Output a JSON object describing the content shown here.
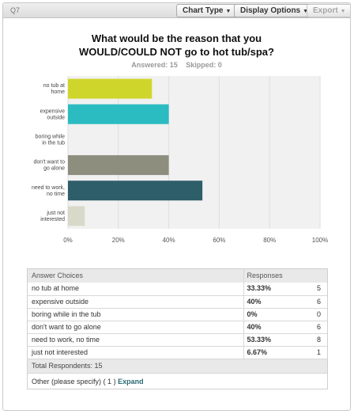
{
  "toolbar": {
    "question_number": "Q7",
    "chart_type_label": "Chart Type",
    "display_options_label": "Display Options",
    "export_label": "Export"
  },
  "question": {
    "title_line1": "What would be the reason that you",
    "title_line2": "WOULD/COULD NOT go to hot tub/spa?",
    "answered": "Answered: 15",
    "skipped": "Skipped: 0"
  },
  "chart_data": {
    "type": "bar",
    "orientation": "horizontal",
    "categories": [
      "no tub at home",
      "expensive outside",
      "boring while in the tub",
      "don't want to go alone",
      "need to work, no time",
      "just not interested"
    ],
    "category_labels": [
      [
        "no tub at",
        "home"
      ],
      [
        "expensive",
        "outside"
      ],
      [
        "boring while",
        "in the tub"
      ],
      [
        "don't want to",
        "go alone"
      ],
      [
        "need to work,",
        "no time"
      ],
      [
        "just not",
        "interested"
      ]
    ],
    "values": [
      33.33,
      40,
      0,
      40,
      53.33,
      6.67
    ],
    "colors": [
      "#cfd62b",
      "#2bbcc2",
      "#e2e2e2",
      "#8e8e7f",
      "#2e5e6a",
      "#d9d9c9"
    ],
    "xlim": [
      0,
      100
    ],
    "x_ticks": [
      "0%",
      "20%",
      "40%",
      "60%",
      "80%",
      "100%"
    ],
    "grid": true,
    "plot_background": "#f1f1f1"
  },
  "table": {
    "header_choice": "Answer Choices",
    "header_responses": "Responses",
    "rows": [
      {
        "choice": "no tub at home",
        "percent": "33.33%",
        "count": "5"
      },
      {
        "choice": "expensive outside",
        "percent": "40%",
        "count": "6"
      },
      {
        "choice": "boring while in the tub",
        "percent": "0%",
        "count": "0"
      },
      {
        "choice": "don't want to go alone",
        "percent": "40%",
        "count": "6"
      },
      {
        "choice": "need to work, no time",
        "percent": "53.33%",
        "count": "8"
      },
      {
        "choice": "just not interested",
        "percent": "6.67%",
        "count": "1"
      }
    ],
    "total_label": "Total Respondents: 15",
    "other_label": "Other (please specify)",
    "other_count": "( 1 )",
    "expand_label": "Expand"
  }
}
